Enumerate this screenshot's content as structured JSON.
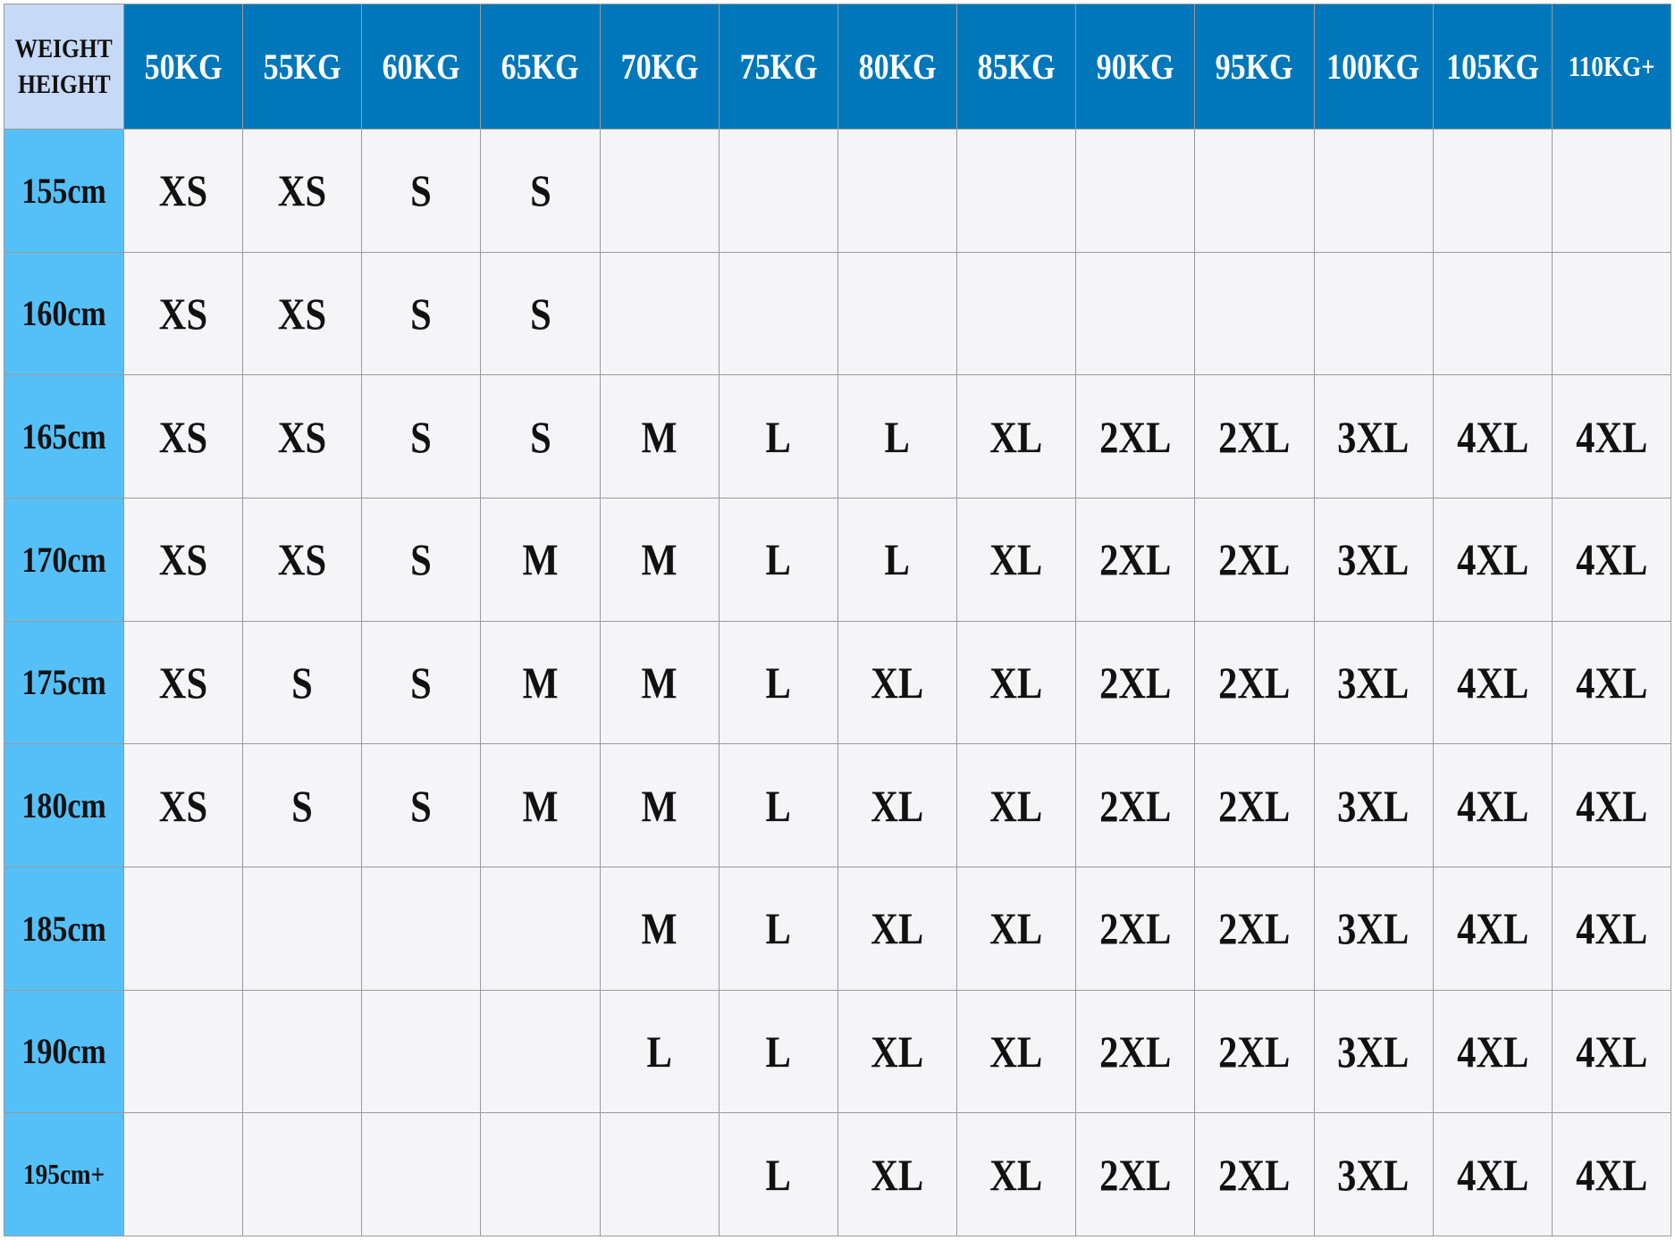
{
  "corner": {
    "top": "WEIGHT",
    "bottom": "HEIGHT"
  },
  "table": {
    "columns": [
      "50KG",
      "55KG",
      "60KG",
      "65KG",
      "70KG",
      "75KG",
      "80KG",
      "85KG",
      "90KG",
      "95KG",
      "100KG",
      "105KG",
      "110KG+"
    ],
    "rows": [
      {
        "height": "155cm",
        "cells": [
          "XS",
          "XS",
          "S",
          "S",
          null,
          null,
          null,
          null,
          null,
          null,
          null,
          null,
          null
        ]
      },
      {
        "height": "160cm",
        "cells": [
          "XS",
          "XS",
          "S",
          "S",
          null,
          null,
          null,
          null,
          null,
          null,
          null,
          null,
          null
        ]
      },
      {
        "height": "165cm",
        "cells": [
          "XS",
          "XS",
          "S",
          "S",
          "M",
          "L",
          "L",
          "XL",
          "2XL",
          "2XL",
          "3XL",
          "4XL",
          "4XL"
        ]
      },
      {
        "height": "170cm",
        "cells": [
          "XS",
          "XS",
          "S",
          "M",
          "M",
          "L",
          "L",
          "XL",
          "2XL",
          "2XL",
          "3XL",
          "4XL",
          "4XL"
        ]
      },
      {
        "height": "175cm",
        "cells": [
          "XS",
          "S",
          "S",
          "M",
          "M",
          "L",
          "XL",
          "XL",
          "2XL",
          "2XL",
          "3XL",
          "4XL",
          "4XL"
        ]
      },
      {
        "height": "180cm",
        "cells": [
          "XS",
          "S",
          "S",
          "M",
          "M",
          "L",
          "XL",
          "XL",
          "2XL",
          "2XL",
          "3XL",
          "4XL",
          "4XL"
        ]
      },
      {
        "height": "185cm",
        "cells": [
          null,
          null,
          null,
          null,
          "M",
          "L",
          "XL",
          "XL",
          "2XL",
          "2XL",
          "3XL",
          "4XL",
          "4XL"
        ]
      },
      {
        "height": "190cm",
        "cells": [
          null,
          null,
          null,
          null,
          "L",
          "L",
          "XL",
          "XL",
          "2XL",
          "2XL",
          "3XL",
          "4XL",
          "4XL"
        ]
      },
      {
        "height": "195cm+",
        "cells": [
          null,
          null,
          null,
          null,
          null,
          "L",
          "XL",
          "XL",
          "2XL",
          "2XL",
          "3XL",
          "4XL",
          "4XL"
        ]
      }
    ]
  }
}
